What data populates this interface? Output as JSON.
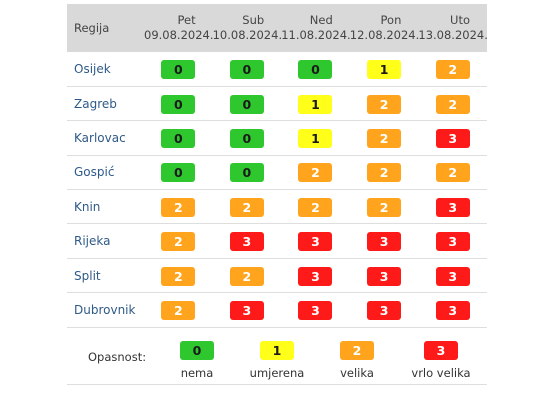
{
  "header": {
    "region_label": "Regija",
    "days": [
      {
        "name": "Pet",
        "date": "09.08.2024."
      },
      {
        "name": "Sub",
        "date": "10.08.2024."
      },
      {
        "name": "Ned",
        "date": "11.08.2024."
      },
      {
        "name": "Pon",
        "date": "12.08.2024."
      },
      {
        "name": "Uto",
        "date": "13.08.2024."
      }
    ]
  },
  "rows": [
    {
      "region": "Osijek",
      "levels": [
        0,
        0,
        0,
        1,
        2
      ]
    },
    {
      "region": "Zagreb",
      "levels": [
        0,
        0,
        1,
        2,
        2
      ]
    },
    {
      "region": "Karlovac",
      "levels": [
        0,
        0,
        1,
        2,
        3
      ]
    },
    {
      "region": "Gospić",
      "levels": [
        0,
        0,
        2,
        2,
        2
      ]
    },
    {
      "region": "Knin",
      "levels": [
        2,
        2,
        2,
        2,
        3
      ]
    },
    {
      "region": "Rijeka",
      "levels": [
        2,
        3,
        3,
        3,
        3
      ]
    },
    {
      "region": "Split",
      "levels": [
        2,
        2,
        3,
        3,
        3
      ]
    },
    {
      "region": "Dubrovnik",
      "levels": [
        2,
        3,
        3,
        3,
        3
      ]
    }
  ],
  "legend": {
    "label": "Opasnost:",
    "items": [
      {
        "value": "0",
        "text": "nema",
        "color": "#2ec72e"
      },
      {
        "value": "1",
        "text": "umjerena",
        "color": "#ffff1a"
      },
      {
        "value": "2",
        "text": "velika",
        "color": "#ffa41c"
      },
      {
        "value": "3",
        "text": "vrlo velika",
        "color": "#ff1a1a"
      }
    ]
  }
}
